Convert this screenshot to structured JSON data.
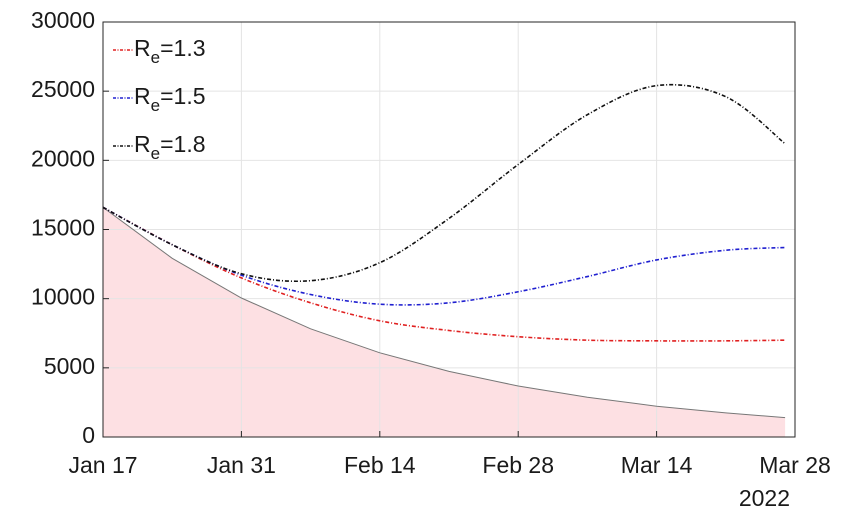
{
  "chart_data": {
    "type": "line",
    "x": [
      "2022-01-17",
      "2022-01-24",
      "2022-01-31",
      "2022-02-07",
      "2022-02-14",
      "2022-02-21",
      "2022-02-28",
      "2022-03-07",
      "2022-03-14",
      "2022-03-21",
      "2022-03-27"
    ],
    "series": [
      {
        "name": "Re=1.3",
        "color": "#e02020",
        "values": [
          16600,
          13900,
          11500,
          9700,
          8400,
          7700,
          7250,
          7000,
          6950,
          6950,
          7000
        ]
      },
      {
        "name": "Re=1.5",
        "color": "#2020d0",
        "values": [
          16600,
          13900,
          11700,
          10300,
          9600,
          9700,
          10500,
          11600,
          12800,
          13500,
          13700
        ]
      },
      {
        "name": "Re=1.8",
        "color": "#111111",
        "values": [
          16600,
          13900,
          11800,
          11300,
          12600,
          15800,
          19700,
          23300,
          25400,
          24600,
          21200
        ]
      }
    ],
    "area": {
      "color": "#fde0e3",
      "line_color": "#777777",
      "values": [
        16600,
        12920,
        10050,
        7820,
        6090,
        4740,
        3690,
        2870,
        2230,
        1740,
        1400
      ]
    },
    "xlim": [
      "2022-01-17",
      "2022-03-28"
    ],
    "xticks": [
      {
        "value": "2022-01-17",
        "label": "Jan 17"
      },
      {
        "value": "2022-01-31",
        "label": "Jan 31"
      },
      {
        "value": "2022-02-14",
        "label": "Feb 14"
      },
      {
        "value": "2022-02-28",
        "label": "Feb 28"
      },
      {
        "value": "2022-03-14",
        "label": "Mar 14"
      },
      {
        "value": "2022-03-28",
        "label": "Mar 28"
      }
    ],
    "x_year_label": "2022",
    "ylim": [
      0,
      30000
    ],
    "yticks": [
      0,
      5000,
      10000,
      15000,
      20000,
      25000,
      30000
    ],
    "grid": true,
    "legend": "upper left"
  }
}
